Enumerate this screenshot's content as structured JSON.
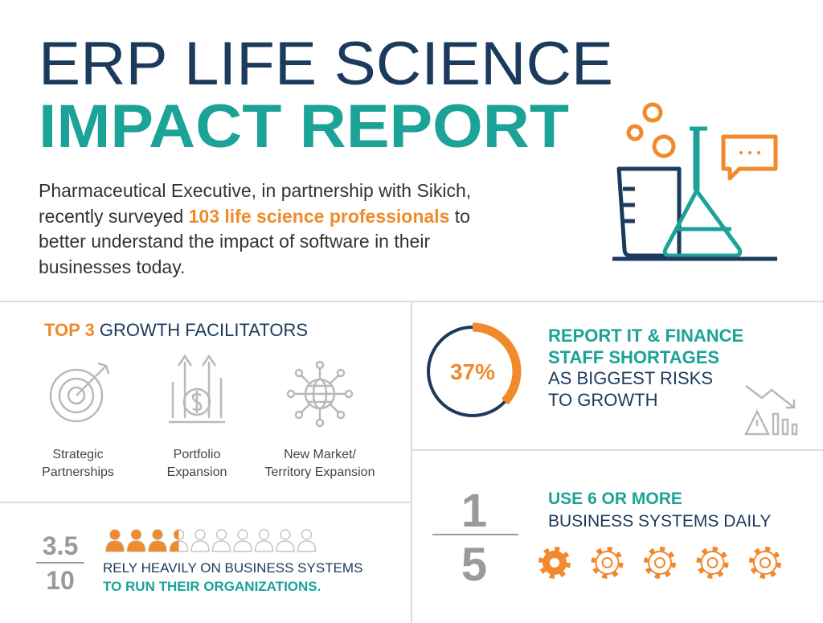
{
  "header": {
    "title_line1": "ERP LIFE SCIENCE",
    "title_line2": "IMPACT REPORT"
  },
  "intro": {
    "line1": "Pharmaceutical Executive, in partnership with Sikich,",
    "line2_before": "recently surveyed",
    "highlight": "103 life science professionals",
    "line2_after": "to",
    "line3": "better understand the impact of software in their",
    "line4": "businesses today."
  },
  "growth": {
    "heading_highlight": "TOP 3",
    "heading": "GROWTH FACILITATORS",
    "items": [
      {
        "label_lines": [
          "Strategic",
          "Partnerships"
        ]
      },
      {
        "label_lines": [
          "Portfolio",
          "Expansion"
        ]
      },
      {
        "label_lines": [
          "New Market/",
          "Territory Expansion"
        ]
      }
    ]
  },
  "risk": {
    "value": 37,
    "label": "37%",
    "highlight_lines": [
      "REPORT IT & FINANCE",
      "STAFF SHORTAGES"
    ],
    "lines": [
      "AS BIGGEST RISKS",
      "TO GROWTH"
    ]
  },
  "reliance": {
    "numerator": 3.5,
    "denominator": 10,
    "line": "RELY HEAVILY ON BUSINESS SYSTEMS",
    "highlight_line": "TO RUN THEIR ORGANIZATIONS."
  },
  "systems": {
    "numerator": 1,
    "denominator": 5,
    "highlight": "USE 6 OR MORE",
    "line": "BUSINESS SYSTEMS DAILY"
  }
}
